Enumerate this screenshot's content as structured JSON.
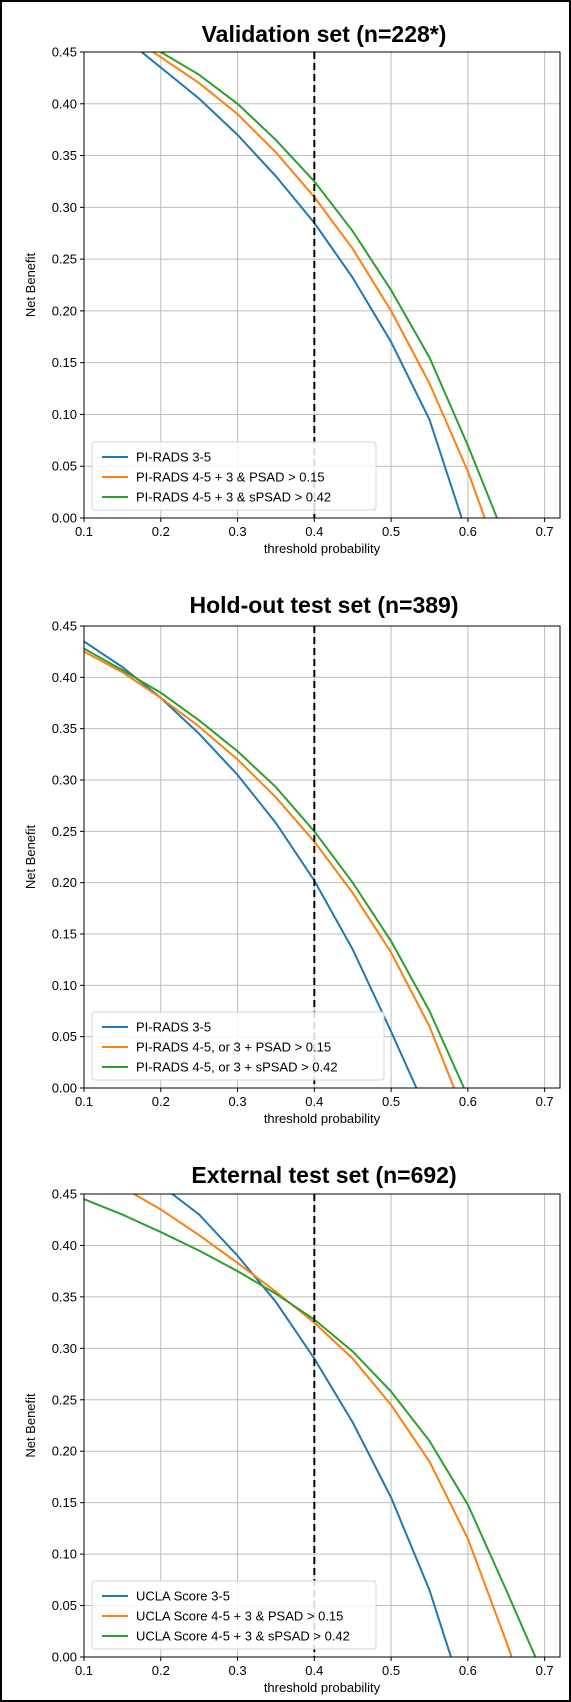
{
  "chart_data": [
    {
      "type": "line",
      "title": "Validation set (n=228*)",
      "xlabel": "threshold probability",
      "ylabel": "Net Benefit",
      "xlim": [
        0.1,
        0.72
      ],
      "ylim": [
        0.0,
        0.45
      ],
      "xticks": [
        "0.1",
        "0.2",
        "0.3",
        "0.4",
        "0.5",
        "0.6",
        "0.7"
      ],
      "yticks": [
        "0.00",
        "0.05",
        "0.10",
        "0.15",
        "0.20",
        "0.25",
        "0.30",
        "0.35",
        "0.40",
        "0.45"
      ],
      "grid": true,
      "vline_x": 0.4,
      "legend_position": "lower-left",
      "series": [
        {
          "name": "PI-RADS 3-5",
          "color": "#1f77b4",
          "x": [
            0.175,
            0.2,
            0.25,
            0.3,
            0.35,
            0.4,
            0.45,
            0.5,
            0.55,
            0.592
          ],
          "y": [
            0.45,
            0.435,
            0.405,
            0.37,
            0.33,
            0.285,
            0.232,
            0.17,
            0.095,
            0.0
          ]
        },
        {
          "name": "PI-RADS 4-5 + 3 & PSAD > 0.15",
          "color": "#ff7f0e",
          "x": [
            0.19,
            0.2,
            0.25,
            0.3,
            0.35,
            0.4,
            0.45,
            0.5,
            0.55,
            0.6,
            0.622
          ],
          "y": [
            0.45,
            0.445,
            0.42,
            0.39,
            0.353,
            0.31,
            0.26,
            0.2,
            0.13,
            0.045,
            0.0
          ]
        },
        {
          "name": "PI-RADS 4-5 + 3 & sPSAD > 0.42",
          "color": "#2ca02c",
          "x": [
            0.2,
            0.25,
            0.3,
            0.35,
            0.4,
            0.45,
            0.5,
            0.55,
            0.6,
            0.638
          ],
          "y": [
            0.45,
            0.428,
            0.4,
            0.365,
            0.325,
            0.277,
            0.22,
            0.155,
            0.07,
            0.0
          ]
        }
      ]
    },
    {
      "type": "line",
      "title": "Hold-out test set (n=389)",
      "xlabel": "threshold probability",
      "ylabel": "Net Benefit",
      "xlim": [
        0.1,
        0.72
      ],
      "ylim": [
        0.0,
        0.45
      ],
      "xticks": [
        "0.1",
        "0.2",
        "0.3",
        "0.4",
        "0.5",
        "0.6",
        "0.7"
      ],
      "yticks": [
        "0.00",
        "0.05",
        "0.10",
        "0.15",
        "0.20",
        "0.25",
        "0.30",
        "0.35",
        "0.40",
        "0.45"
      ],
      "grid": true,
      "vline_x": 0.4,
      "legend_position": "lower-left",
      "series": [
        {
          "name": "PI-RADS 3-5",
          "color": "#1f77b4",
          "x": [
            0.1,
            0.15,
            0.2,
            0.25,
            0.3,
            0.35,
            0.4,
            0.45,
            0.5,
            0.533
          ],
          "y": [
            0.435,
            0.41,
            0.38,
            0.345,
            0.305,
            0.258,
            0.202,
            0.135,
            0.055,
            0.0
          ]
        },
        {
          "name": "PI-RADS 4-5, or 3 + PSAD > 0.15",
          "color": "#ff7f0e",
          "x": [
            0.1,
            0.15,
            0.2,
            0.25,
            0.3,
            0.35,
            0.4,
            0.45,
            0.5,
            0.55,
            0.582
          ],
          "y": [
            0.425,
            0.405,
            0.38,
            0.352,
            0.32,
            0.283,
            0.24,
            0.19,
            0.132,
            0.06,
            0.0
          ]
        },
        {
          "name": "PI-RADS 4-5, or 3 + sPSAD > 0.42",
          "color": "#2ca02c",
          "x": [
            0.1,
            0.15,
            0.2,
            0.25,
            0.3,
            0.35,
            0.4,
            0.45,
            0.5,
            0.55,
            0.595
          ],
          "y": [
            0.428,
            0.407,
            0.385,
            0.358,
            0.328,
            0.293,
            0.25,
            0.2,
            0.143,
            0.075,
            0.0
          ]
        }
      ]
    },
    {
      "type": "line",
      "title": "External test set (n=692)",
      "xlabel": "threshold probability",
      "ylabel": "Net Benefit",
      "xlim": [
        0.1,
        0.72
      ],
      "ylim": [
        0.0,
        0.45
      ],
      "xticks": [
        "0.1",
        "0.2",
        "0.3",
        "0.4",
        "0.5",
        "0.6",
        "0.7"
      ],
      "yticks": [
        "0.00",
        "0.05",
        "0.10",
        "0.15",
        "0.20",
        "0.25",
        "0.30",
        "0.35",
        "0.40",
        "0.45"
      ],
      "grid": true,
      "vline_x": 0.4,
      "legend_position": "lower-left",
      "series": [
        {
          "name": "UCLA Score 3-5",
          "color": "#1f77b4",
          "x": [
            0.215,
            0.25,
            0.3,
            0.35,
            0.4,
            0.45,
            0.5,
            0.55,
            0.578
          ],
          "y": [
            0.45,
            0.43,
            0.39,
            0.345,
            0.29,
            0.228,
            0.155,
            0.065,
            0.0
          ]
        },
        {
          "name": "UCLA Score 4-5 + 3 & PSAD > 0.15",
          "color": "#ff7f0e",
          "x": [
            0.165,
            0.2,
            0.25,
            0.3,
            0.35,
            0.4,
            0.45,
            0.5,
            0.55,
            0.6,
            0.65,
            0.657
          ],
          "y": [
            0.45,
            0.435,
            0.41,
            0.383,
            0.355,
            0.325,
            0.29,
            0.245,
            0.19,
            0.115,
            0.015,
            0.0
          ]
        },
        {
          "name": "UCLA Score 4-5 + 3 & sPSAD > 0.42",
          "color": "#2ca02c",
          "x": [
            0.1,
            0.15,
            0.2,
            0.25,
            0.3,
            0.35,
            0.4,
            0.45,
            0.5,
            0.55,
            0.6,
            0.65,
            0.688
          ],
          "y": [
            0.445,
            0.43,
            0.413,
            0.395,
            0.375,
            0.353,
            0.328,
            0.297,
            0.258,
            0.21,
            0.148,
            0.065,
            0.0
          ]
        }
      ]
    }
  ]
}
